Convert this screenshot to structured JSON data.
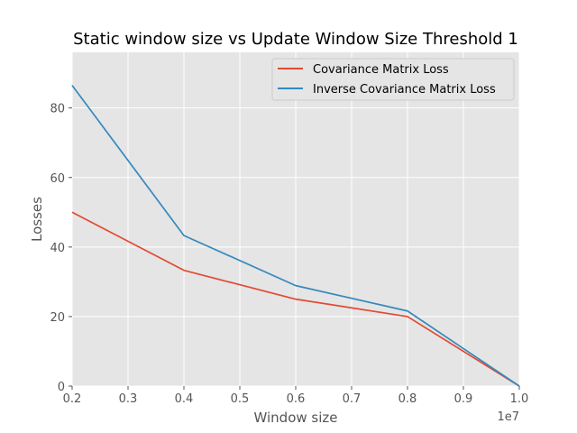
{
  "chart_data": {
    "type": "line",
    "title": "Static window size vs Update Window Size Threshold 1",
    "xlabel": "Window size",
    "ylabel": "Losses",
    "x_offset_label": "1e7",
    "xlim": [
      0.2,
      1.0
    ],
    "ylim": [
      0,
      96
    ],
    "x_ticks": [
      0.2,
      0.3,
      0.4,
      0.5,
      0.6,
      0.7,
      0.8,
      0.9,
      1.0
    ],
    "x_tick_labels": [
      "0.2",
      "0.3",
      "0.4",
      "0.5",
      "0.6",
      "0.7",
      "0.8",
      "0.9",
      "1.0"
    ],
    "y_ticks": [
      0,
      20,
      40,
      60,
      80
    ],
    "y_tick_labels": [
      "0",
      "20",
      "40",
      "60",
      "80"
    ],
    "grid": true,
    "legend_position": "top-right",
    "x": [
      0.2,
      0.4,
      0.6,
      0.8,
      1.0
    ],
    "series": [
      {
        "name": "Covariance Matrix Loss",
        "color": "#E24A33",
        "values": [
          50.0,
          33.3,
          25.0,
          20.0,
          0.0
        ]
      },
      {
        "name": "Inverse Covariance Matrix Loss",
        "color": "#348ABD",
        "values": [
          86.5,
          43.3,
          28.9,
          21.6,
          0.0
        ]
      }
    ],
    "background_color": "#E5E5E5",
    "grid_color": "#FFFFFF"
  }
}
